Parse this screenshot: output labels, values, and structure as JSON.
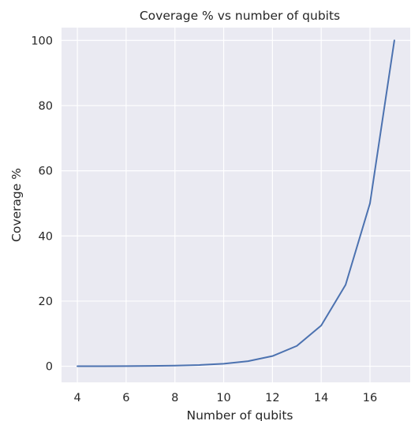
{
  "chart_data": {
    "type": "line",
    "title": "Coverage % vs number of qubits",
    "xlabel": "Number of qubits",
    "ylabel": "Coverage %",
    "xlim": [
      3.35,
      17.65
    ],
    "ylim": [
      -4.94,
      103.94
    ],
    "xticks": [
      4,
      6,
      8,
      10,
      12,
      14,
      16
    ],
    "yticks": [
      0,
      20,
      40,
      60,
      80,
      100
    ],
    "grid": true,
    "colors": {
      "background": "#eaeaf2",
      "grid": "#ffffff",
      "line": "#4c72b0",
      "text": "#262626"
    },
    "series": [
      {
        "x": [
          4,
          5,
          6,
          7,
          8,
          9,
          10,
          11,
          12,
          13,
          14,
          15,
          16,
          17
        ],
        "values": [
          0.01,
          0.02,
          0.05,
          0.1,
          0.2,
          0.39,
          0.78,
          1.56,
          3.13,
          6.25,
          12.5,
          25,
          50,
          100
        ]
      }
    ]
  }
}
